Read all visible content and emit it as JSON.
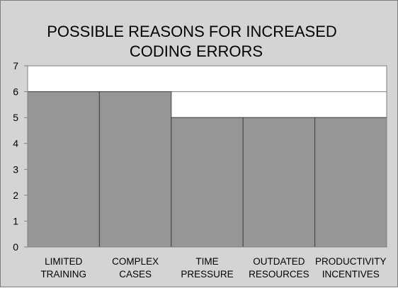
{
  "chart_data": {
    "type": "bar",
    "title": [
      "POSSIBLE REASONS FOR INCREASED",
      "CODING ERRORS"
    ],
    "categories": [
      [
        "LIMITED",
        "TRAINING"
      ],
      [
        "COMPLEX",
        "CASES"
      ],
      [
        "TIME",
        "PRESSURE"
      ],
      [
        "OUTDATED",
        "RESOURCES"
      ],
      [
        "PRODUCTIVITY",
        "INCENTIVES"
      ]
    ],
    "values": [
      6,
      6,
      5,
      5,
      5
    ],
    "ylim": [
      0,
      7
    ],
    "yticks": [
      "0",
      "1",
      "2",
      "3",
      "4",
      "5",
      "6",
      "7"
    ],
    "grid": true,
    "legend": "none",
    "colors": {
      "background": "#d4d4d4",
      "plot_area": "#ffffff",
      "bar_fill": "#969696",
      "bar_stroke": "#404040",
      "grid": "#808080",
      "axis": "#808080"
    }
  }
}
